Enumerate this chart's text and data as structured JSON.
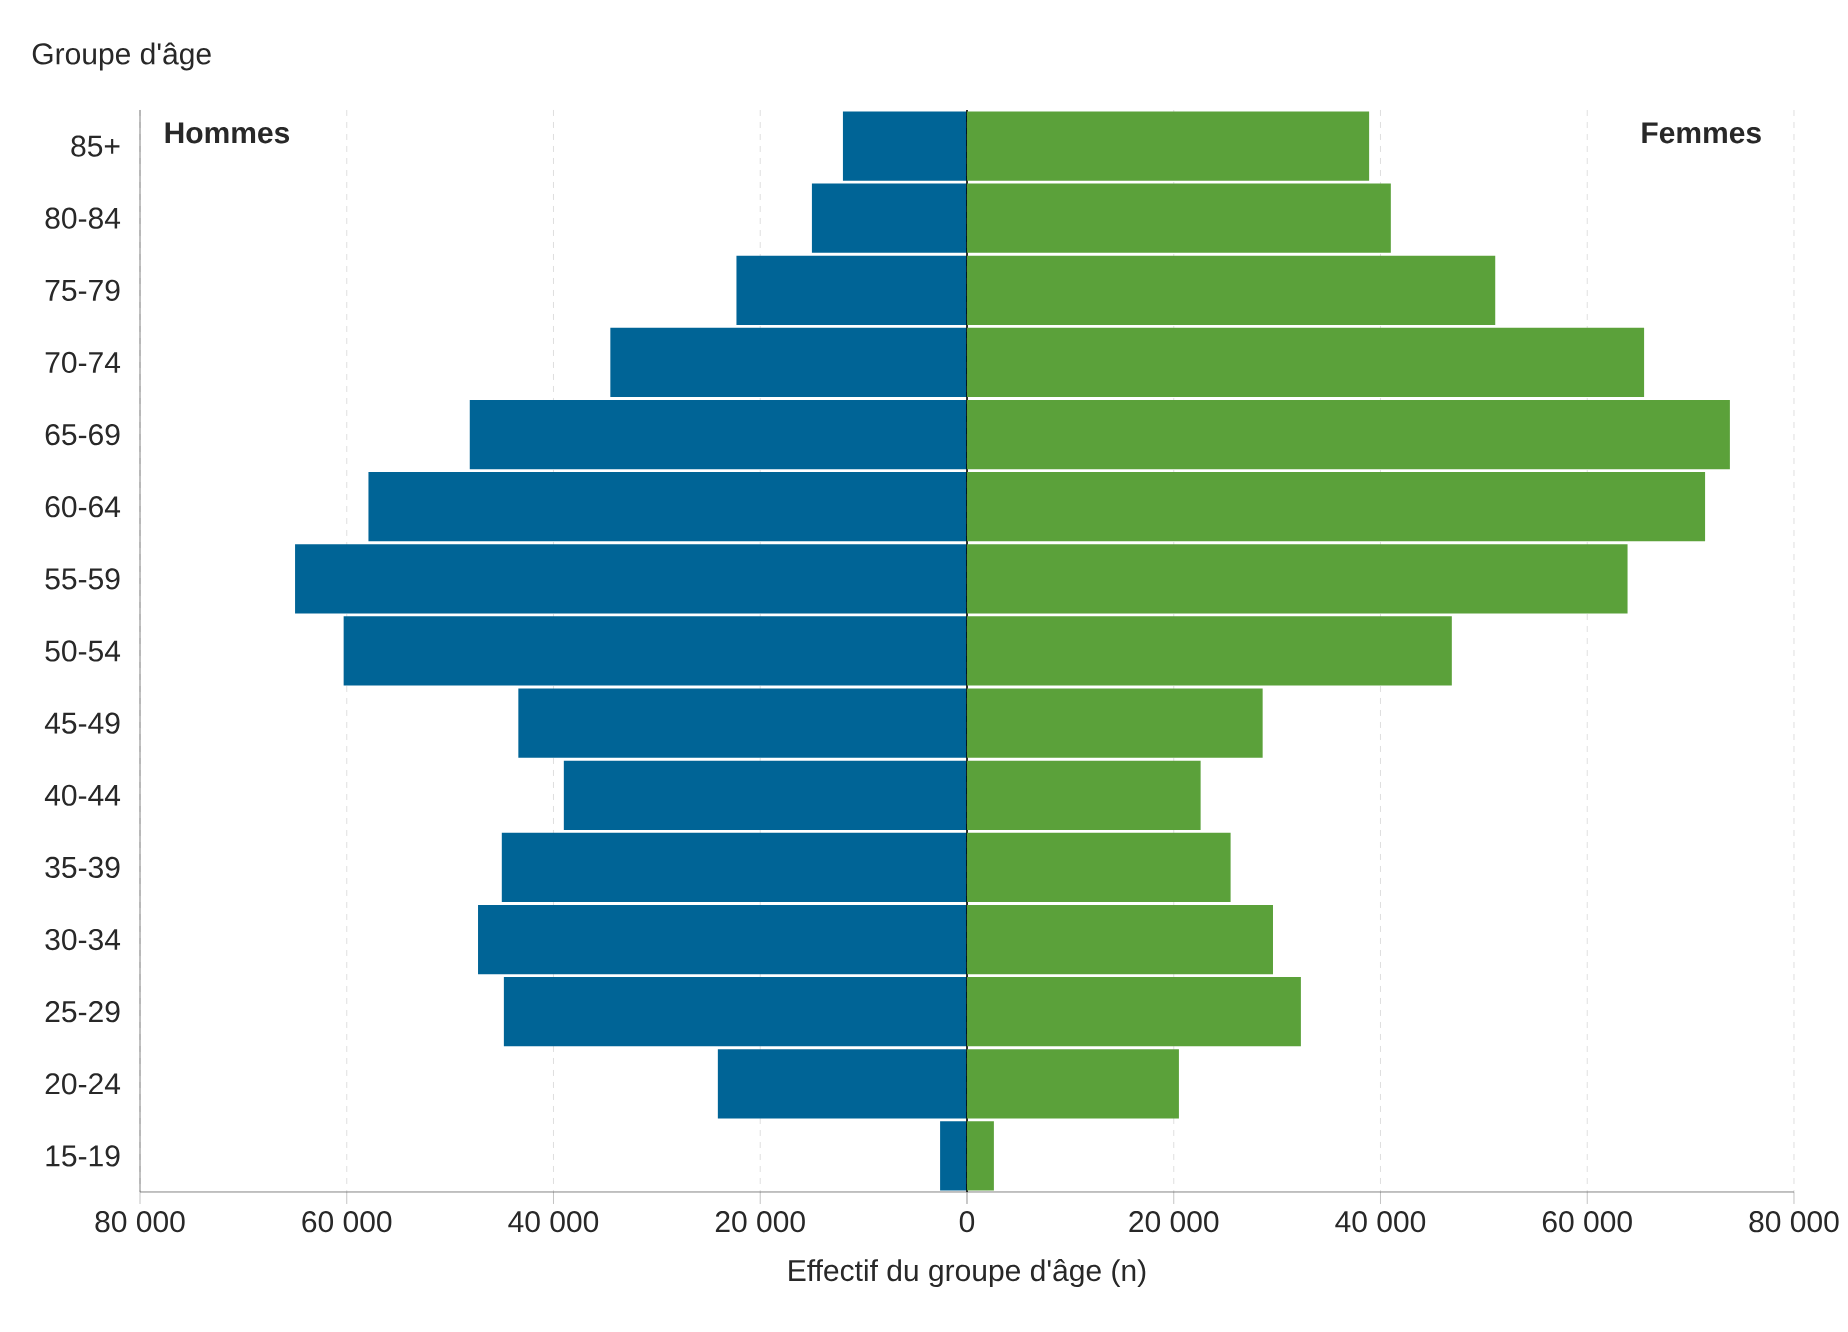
{
  "chart_data": [
    {
      "type": "bar",
      "orientation": "horizontal",
      "xlabel": "Effectif du groupe d'âge (n)",
      "ylabel": "Groupe d'âge",
      "categories": [
        "85+",
        "80-84",
        "75-79",
        "70-74",
        "65-69",
        "60-64",
        "55-59",
        "50-54",
        "45-49",
        "40-44",
        "35-39",
        "30-34",
        "25-29",
        "20-24",
        "15-19"
      ],
      "series": [
        {
          "name": "Hommes",
          "color": "#006496",
          "values": [
            12000,
            15000,
            22300,
            34500,
            48100,
            57900,
            65000,
            60300,
            43400,
            39000,
            45000,
            47300,
            44800,
            24100,
            2600
          ]
        }
      ],
      "xlim": [
        80000,
        0
      ],
      "xticks": [
        {
          "value": 80000,
          "label": "80 000"
        },
        {
          "value": 60000,
          "label": "60 000"
        },
        {
          "value": 40000,
          "label": "40 000"
        },
        {
          "value": 20000,
          "label": "20 000"
        },
        0
      ],
      "grid": "x"
    },
    {
      "type": "bar",
      "orientation": "horizontal",
      "categories": [
        null,
        null,
        null,
        null,
        null,
        null,
        null,
        null,
        null,
        null,
        null,
        null,
        null,
        null,
        null
      ],
      "series": [
        {
          "name": "Femmes",
          "color": "#5ba13a",
          "values": [
            38900,
            41000,
            51100,
            65500,
            73800,
            71400,
            63900,
            46900,
            28600,
            22600,
            25500,
            29600,
            32300,
            20500,
            2600
          ]
        }
      ],
      "xlim": [
        0,
        80000
      ],
      "xticks": [
        {
          "value": 0,
          "label": null
        },
        {
          "value": 20000,
          "label": "20 000"
        },
        {
          "value": 40000,
          "label": "40 000"
        },
        {
          "value": 60000,
          "label": "60 000"
        },
        {
          "value": 80000,
          "label": "80 000"
        }
      ],
      "grid": "x",
      "tick_labels": "x"
    }
  ]
}
